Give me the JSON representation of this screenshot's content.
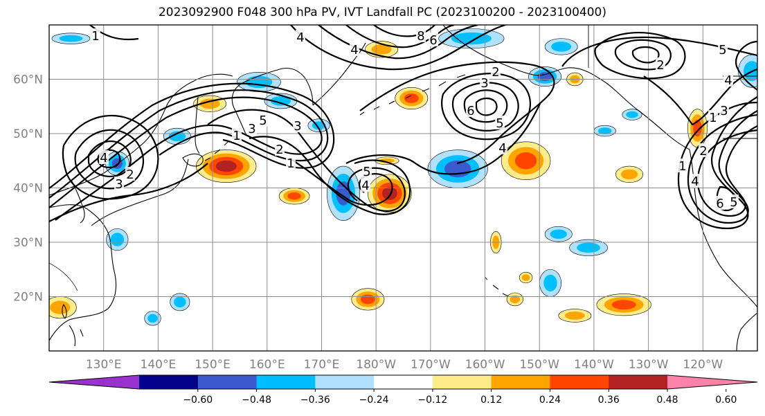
{
  "title": "2023092900 F048 300 hPa PV, IVT Landfall PC (2023100200 - 2023100400)",
  "map": {
    "lon_range": [
      120,
      250
    ],
    "lat_range": [
      10,
      70
    ],
    "lat_ticks": [
      {
        "value": 20,
        "label": "20°N"
      },
      {
        "value": 30,
        "label": "30°N"
      },
      {
        "value": 40,
        "label": "40°N"
      },
      {
        "value": 50,
        "label": "50°N"
      },
      {
        "value": 60,
        "label": "60°N"
      }
    ],
    "lon_ticks": [
      {
        "value": 130,
        "label": "130°E"
      },
      {
        "value": 140,
        "label": "140°E"
      },
      {
        "value": 150,
        "label": "150°E"
      },
      {
        "value": 160,
        "label": "160°E"
      },
      {
        "value": 170,
        "label": "170°E"
      },
      {
        "value": 180,
        "label": "180°W"
      },
      {
        "value": 190,
        "label": "170°W"
      },
      {
        "value": 200,
        "label": "160°W"
      },
      {
        "value": 210,
        "label": "150°W"
      },
      {
        "value": 220,
        "label": "140°W"
      },
      {
        "value": 230,
        "label": "130°W"
      },
      {
        "value": 240,
        "label": "120°W"
      }
    ],
    "grid": true
  },
  "colorbar": {
    "colors": [
      "#9932cc",
      "#00008b",
      "#3a5bcd",
      "#00bfff",
      "#b0e2ff",
      "#ffffff",
      "#ffec8b",
      "#ffa500",
      "#ff4500",
      "#b22222",
      "#ff82ab"
    ],
    "tick_labels": [
      "−0.60",
      "−0.48",
      "−0.36",
      "−0.24",
      "−0.12",
      "0.12",
      "0.24",
      "0.36",
      "0.48",
      "0.60"
    ],
    "extend": "both"
  },
  "contour_labels": [
    "1",
    "1",
    "4",
    "8",
    "6",
    "2",
    "3",
    "5",
    "4",
    "3",
    "2",
    "1",
    "2",
    "3",
    "6",
    "5",
    "4",
    "3",
    "5",
    "4",
    "4",
    "1",
    "2",
    "3",
    "4",
    "1",
    "5",
    "6",
    "4",
    "2",
    "5"
  ],
  "shading": [
    {
      "lon": 132.5,
      "lat": 44.5,
      "r": [
        2.2,
        2.2
      ],
      "v": -0.4
    },
    {
      "lon": 143.5,
      "lat": 49.5,
      "r": [
        2.5,
        1.5
      ],
      "v": -0.3
    },
    {
      "lon": 149.5,
      "lat": 55.5,
      "r": [
        3.0,
        1.5
      ],
      "v": 0.28
    },
    {
      "lon": 152.5,
      "lat": 44.0,
      "r": [
        5.5,
        3.0
      ],
      "v": 0.52
    },
    {
      "lon": 158.5,
      "lat": 59.5,
      "r": [
        4.0,
        1.8
      ],
      "v": -0.35
    },
    {
      "lon": 162.5,
      "lat": 56.0,
      "r": [
        3.0,
        1.4
      ],
      "v": -0.28
    },
    {
      "lon": 165.0,
      "lat": 38.5,
      "r": [
        2.8,
        1.5
      ],
      "v": 0.4
    },
    {
      "lon": 169.5,
      "lat": 51.5,
      "r": [
        2.0,
        1.2
      ],
      "v": -0.3
    },
    {
      "lon": 174.0,
      "lat": 39.0,
      "r": [
        3.0,
        5.0
      ],
      "v": -0.42
    },
    {
      "lon": 181.0,
      "lat": 65.5,
      "r": [
        3.0,
        1.5
      ],
      "v": 0.3
    },
    {
      "lon": 182.0,
      "lat": 45.0,
      "r": [
        2.2,
        0.7
      ],
      "v": 0.25
    },
    {
      "lon": 182.5,
      "lat": 39.0,
      "r": [
        4.0,
        3.5
      ],
      "v": 0.5
    },
    {
      "lon": 186.5,
      "lat": 56.5,
      "r": [
        3.0,
        2.0
      ],
      "v": 0.38
    },
    {
      "lon": 195.0,
      "lat": 43.5,
      "r": [
        5.5,
        3.5
      ],
      "v": -0.45
    },
    {
      "lon": 197.5,
      "lat": 67.5,
      "r": [
        6.0,
        1.8
      ],
      "v": -0.3
    },
    {
      "lon": 207.5,
      "lat": 45.0,
      "r": [
        4.5,
        3.5
      ],
      "v": 0.4
    },
    {
      "lon": 211.0,
      "lat": 60.5,
      "r": [
        3.0,
        1.8
      ],
      "v": -0.42
    },
    {
      "lon": 216.5,
      "lat": 60.0,
      "r": [
        1.5,
        1.2
      ],
      "v": 0.3
    },
    {
      "lon": 222.0,
      "lat": 50.5,
      "r": [
        2.0,
        1.0
      ],
      "v": -0.28
    },
    {
      "lon": 226.5,
      "lat": 42.5,
      "r": [
        2.5,
        1.5
      ],
      "v": 0.3
    },
    {
      "lon": 239.0,
      "lat": 51.0,
      "r": [
        1.8,
        3.5
      ],
      "v": 0.38
    },
    {
      "lon": 249.0,
      "lat": 61.5,
      "r": [
        2.5,
        3.0
      ],
      "v": -0.25
    },
    {
      "lon": 122.0,
      "lat": 18.0,
      "r": [
        3.0,
        2.0
      ],
      "v": 0.35
    },
    {
      "lon": 132.5,
      "lat": 30.5,
      "r": [
        2.0,
        2.0
      ],
      "v": -0.3
    },
    {
      "lon": 144.0,
      "lat": 19.0,
      "r": [
        1.8,
        1.6
      ],
      "v": -0.3
    },
    {
      "lon": 139.0,
      "lat": 16.0,
      "r": [
        1.5,
        1.3
      ],
      "v": -0.28
    },
    {
      "lon": 178.5,
      "lat": 19.5,
      "r": [
        3.0,
        2.0
      ],
      "v": 0.4
    },
    {
      "lon": 202.0,
      "lat": 30.0,
      "r": [
        1.0,
        2.0
      ],
      "v": 0.28
    },
    {
      "lon": 205.5,
      "lat": 19.5,
      "r": [
        1.5,
        1.2
      ],
      "v": 0.28
    },
    {
      "lon": 212.0,
      "lat": 22.5,
      "r": [
        2.0,
        2.5
      ],
      "v": -0.28
    },
    {
      "lon": 213.5,
      "lat": 31.5,
      "r": [
        2.5,
        1.4
      ],
      "v": -0.26
    },
    {
      "lon": 219.0,
      "lat": 29.0,
      "r": [
        3.5,
        1.5
      ],
      "v": -0.26
    },
    {
      "lon": 225.5,
      "lat": 18.5,
      "r": [
        5.0,
        2.0
      ],
      "v": 0.4
    },
    {
      "lon": 216.5,
      "lat": 16.5,
      "r": [
        3.0,
        1.2
      ],
      "v": 0.3
    },
    {
      "lon": 207.5,
      "lat": 23.5,
      "r": [
        1.2,
        1.0
      ],
      "v": 0.28
    },
    {
      "lon": 214.0,
      "lat": 66.0,
      "r": [
        3.0,
        1.5
      ],
      "v": -0.25
    },
    {
      "lon": 124.0,
      "lat": 67.5,
      "r": [
        3.5,
        1.0
      ],
      "v": -0.25
    },
    {
      "lon": 227.0,
      "lat": 53.5,
      "r": [
        1.8,
        1.0
      ],
      "v": -0.25
    }
  ]
}
